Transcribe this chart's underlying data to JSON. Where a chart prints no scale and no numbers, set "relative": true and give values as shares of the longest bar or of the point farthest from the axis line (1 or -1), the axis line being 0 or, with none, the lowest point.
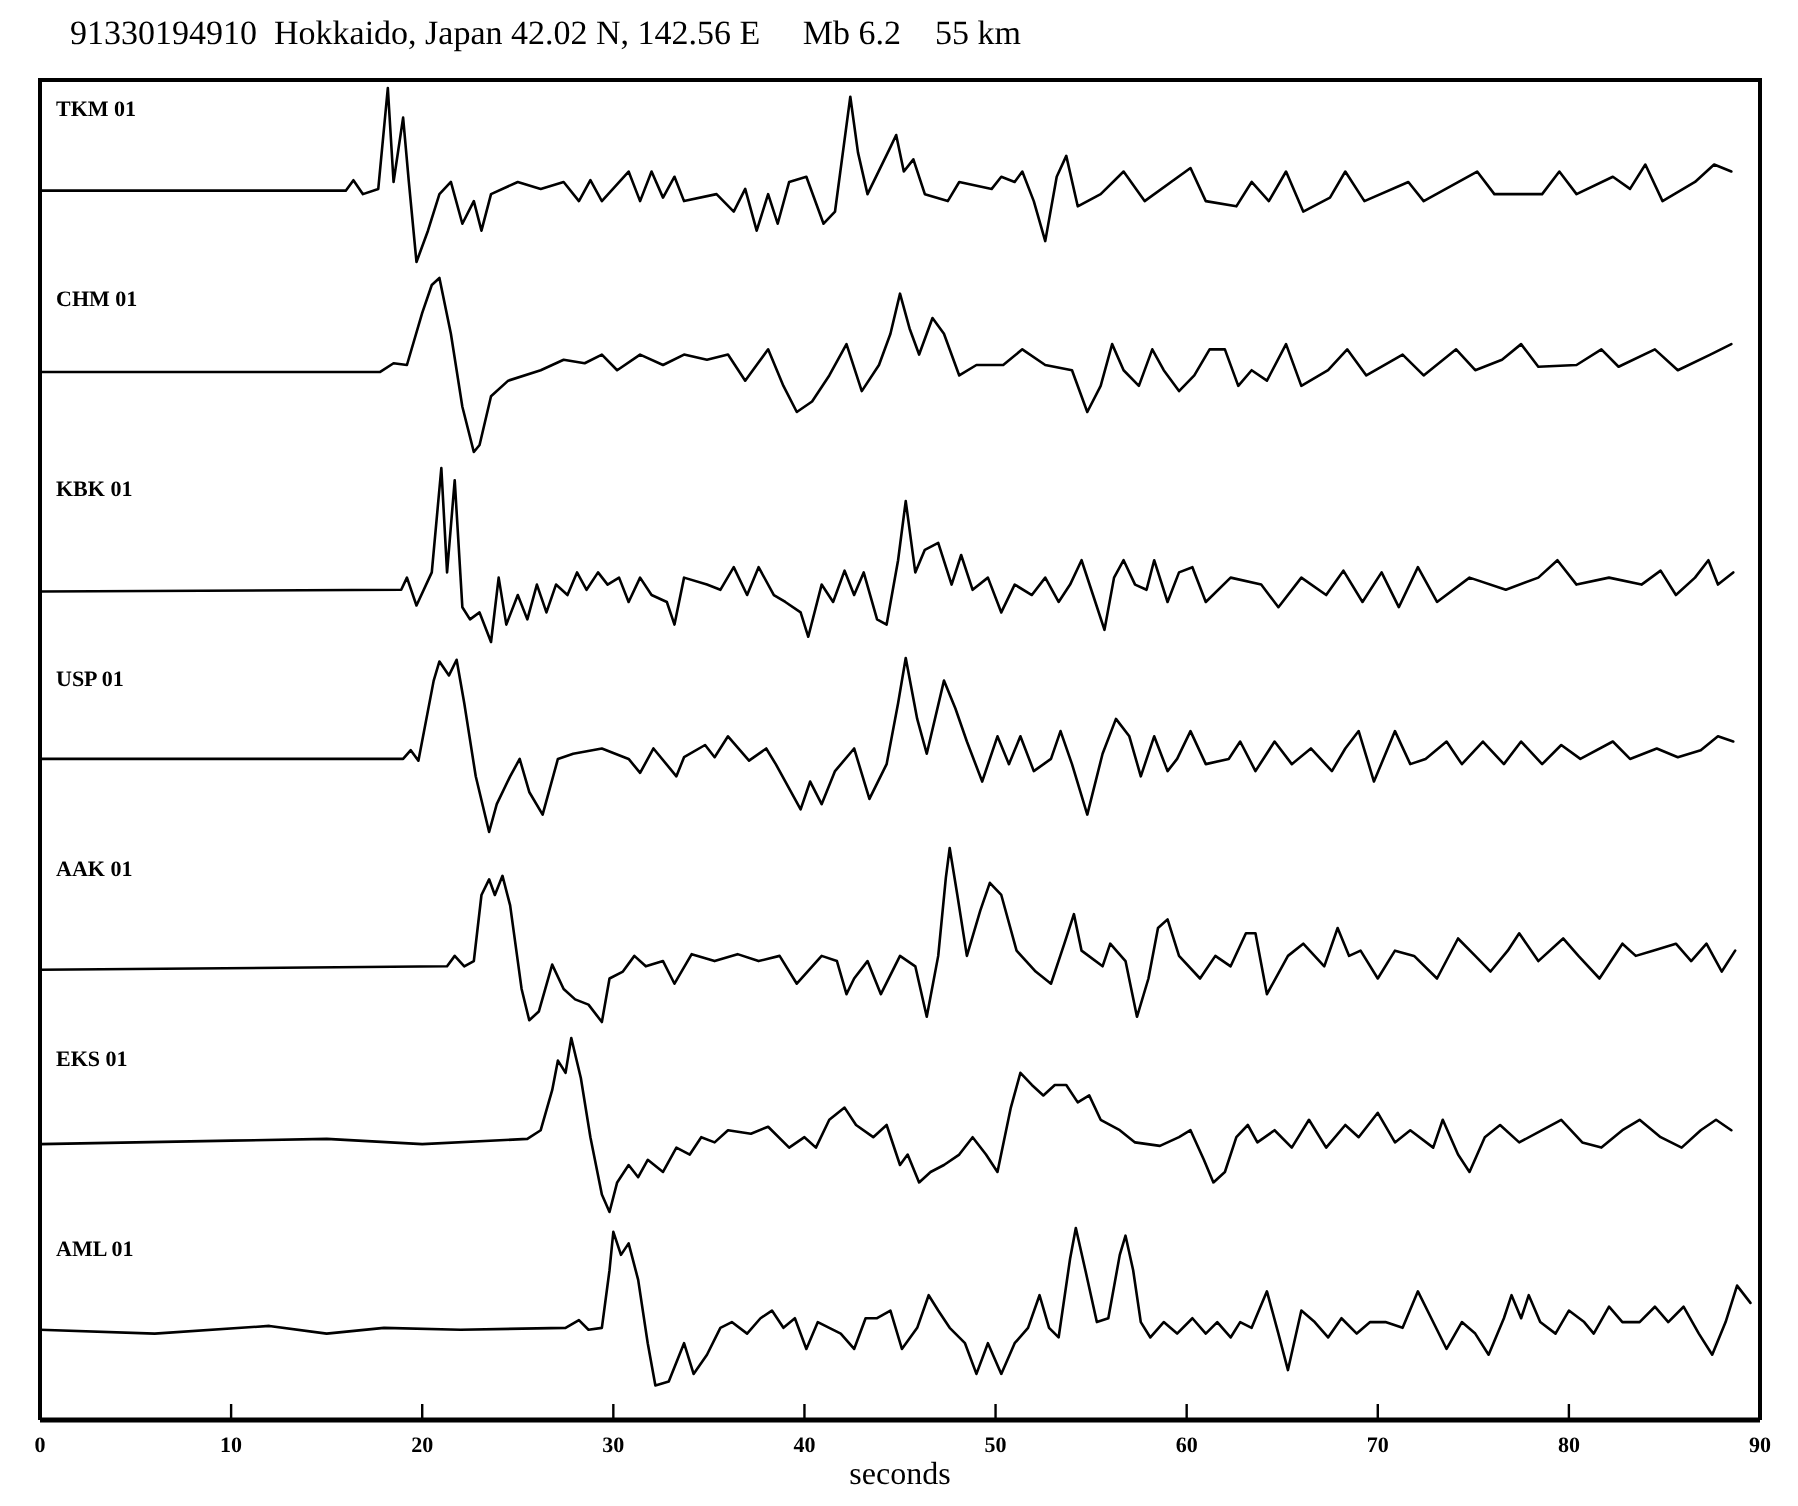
{
  "chart_data": [
    {
      "type": "line",
      "title": "91330194910  Hokkaido, Japan 42.02 N, 142.56 E     Mb 6.2    55 km",
      "relative": true,
      "xlim": [
        0,
        90
      ],
      "tick_labels": false,
      "x": [
        0,
        16.0,
        16.4,
        16.9,
        17.7,
        18.2,
        18.5,
        19.0,
        19.3,
        19.7,
        20.3,
        20.9,
        21.5,
        22.1,
        22.7,
        23.1,
        23.6,
        25.0,
        26.2,
        27.4,
        28.2,
        28.8,
        29.4,
        30.8,
        31.4,
        32.0,
        32.6,
        33.2,
        33.7,
        35.4,
        36.3,
        36.9,
        37.5,
        38.1,
        38.6,
        39.2,
        40.1,
        41.0,
        41.6,
        42.4,
        42.8,
        43.3,
        44.5,
        44.8,
        45.2,
        45.7,
        46.3,
        47.5,
        48.1,
        49.8,
        50.3,
        51.0,
        51.4,
        52.0,
        52.6,
        53.2,
        53.7,
        54.3,
        55.5,
        56.7,
        57.8,
        60.2,
        61.0,
        62.6,
        63.4,
        64.3,
        65.2,
        66.1,
        67.5,
        68.3,
        69.3,
        71.6,
        72.4,
        75.2,
        76.1,
        78.6,
        79.5,
        80.4,
        82.3,
        83.2,
        84.0,
        84.9,
        86.6,
        87.6,
        88.5
      ],
      "series": [
        {
          "name": "TKM 01",
          "color": "#000000",
          "values": [
            0.41,
            0.41,
            0.47,
            0.39,
            0.42,
            1.0,
            0.46,
            0.83,
            0.46,
            0,
            0.18,
            0.39,
            0.46,
            0.22,
            0.35,
            0.18,
            0.39,
            0.46,
            0.42,
            0.46,
            0.35,
            0.47,
            0.35,
            0.52,
            0.35,
            0.52,
            0.37,
            0.49,
            0.35,
            0.39,
            0.29,
            0.42,
            0.18,
            0.39,
            0.22,
            0.46,
            0.49,
            0.22,
            0.29,
            0.95,
            0.63,
            0.39,
            0.66,
            0.73,
            0.52,
            0.59,
            0.39,
            0.35,
            0.46,
            0.42,
            0.49,
            0.46,
            0.52,
            0.35,
            0.12,
            0.49,
            0.61,
            0.32,
            0.39,
            0.52,
            0.35,
            0.54,
            0.35,
            0.32,
            0.46,
            0.35,
            0.52,
            0.29,
            0.37,
            0.52,
            0.35,
            0.46,
            0.35,
            0.52,
            0.39,
            0.39,
            0.52,
            0.39,
            0.49,
            0.42,
            0.56,
            0.35,
            0.46,
            0.56,
            0.52
          ]
        }
      ]
    },
    {
      "type": "line",
      "relative": true,
      "xlim": [
        0,
        90
      ],
      "tick_labels": false,
      "x": [
        0,
        17.8,
        18.5,
        19.2,
        20.0,
        20.5,
        20.9,
        21.5,
        22.1,
        22.7,
        23.0,
        23.6,
        24.5,
        26.2,
        27.4,
        28.5,
        29.4,
        30.2,
        31.4,
        32.6,
        33.7,
        34.9,
        36.0,
        36.9,
        37.5,
        38.1,
        38.9,
        39.6,
        40.4,
        41.3,
        42.2,
        43.0,
        43.9,
        44.5,
        45.0,
        45.5,
        46.0,
        46.7,
        47.3,
        48.1,
        49.0,
        50.4,
        51.4,
        52.6,
        54.0,
        54.8,
        55.5,
        56.1,
        56.7,
        57.5,
        58.2,
        58.8,
        59.6,
        60.4,
        61.2,
        62.0,
        62.7,
        63.4,
        64.2,
        65.2,
        66.0,
        67.4,
        68.4,
        69.4,
        71.3,
        72.4,
        74.1,
        75.1,
        76.5,
        77.5,
        78.4,
        80.4,
        81.7,
        82.6,
        84.5,
        85.7,
        87.4,
        88.5
      ],
      "series": [
        {
          "name": "CHM 01",
          "color": "#000000",
          "values": [
            0.46,
            0.46,
            0.51,
            0.5,
            0.8,
            0.96,
            1.0,
            0.68,
            0.26,
            0,
            0.04,
            0.32,
            0.41,
            0.47,
            0.53,
            0.51,
            0.56,
            0.47,
            0.56,
            0.5,
            0.56,
            0.53,
            0.56,
            0.41,
            0.5,
            0.59,
            0.38,
            0.23,
            0.29,
            0.44,
            0.62,
            0.35,
            0.5,
            0.68,
            0.91,
            0.71,
            0.56,
            0.77,
            0.68,
            0.44,
            0.5,
            0.5,
            0.59,
            0.5,
            0.47,
            0.23,
            0.38,
            0.62,
            0.47,
            0.38,
            0.59,
            0.47,
            0.35,
            0.44,
            0.59,
            0.59,
            0.38,
            0.47,
            0.41,
            0.62,
            0.38,
            0.47,
            0.59,
            0.44,
            0.56,
            0.44,
            0.59,
            0.47,
            0.53,
            0.62,
            0.49,
            0.5,
            0.59,
            0.49,
            0.59,
            0.47,
            0.56,
            0.62
          ]
        }
      ]
    },
    {
      "type": "line",
      "relative": true,
      "xlim": [
        0,
        90
      ],
      "tick_labels": false,
      "x": [
        0,
        18.9,
        19.2,
        19.7,
        20.5,
        21.0,
        21.3,
        21.7,
        22.1,
        22.5,
        23.0,
        23.6,
        24.0,
        24.4,
        25.0,
        25.5,
        26.0,
        26.5,
        27.0,
        27.6,
        28.1,
        28.6,
        29.2,
        29.7,
        30.3,
        30.8,
        31.4,
        32.0,
        32.8,
        33.2,
        33.7,
        34.9,
        35.6,
        36.3,
        37.0,
        37.6,
        38.4,
        39.0,
        39.8,
        40.2,
        40.9,
        41.5,
        42.1,
        42.6,
        43.1,
        43.8,
        44.3,
        44.9,
        45.3,
        45.8,
        46.3,
        47.0,
        47.7,
        48.2,
        48.8,
        49.6,
        50.3,
        51.0,
        51.9,
        52.6,
        53.3,
        53.9,
        54.5,
        55.1,
        55.7,
        56.2,
        56.7,
        57.3,
        57.9,
        58.3,
        59.0,
        59.6,
        60.3,
        61.0,
        62.3,
        63.9,
        64.8,
        66.0,
        67.3,
        68.2,
        69.2,
        70.2,
        71.1,
        72.1,
        73.1,
        74.8,
        76.7,
        78.4,
        79.4,
        80.4,
        82.1,
        83.8,
        84.8,
        85.6,
        86.6,
        87.3,
        87.8,
        88.6
      ],
      "series": [
        {
          "name": "KBK 01",
          "color": "#000000",
          "values": [
            0.29,
            0.3,
            0.37,
            0.21,
            0.4,
            1.0,
            0.4,
            0.93,
            0.2,
            0.13,
            0.17,
            0,
            0.37,
            0.1,
            0.27,
            0.13,
            0.33,
            0.17,
            0.33,
            0.27,
            0.4,
            0.3,
            0.4,
            0.33,
            0.37,
            0.23,
            0.37,
            0.27,
            0.23,
            0.1,
            0.37,
            0.33,
            0.3,
            0.43,
            0.27,
            0.43,
            0.27,
            0.23,
            0.17,
            0.03,
            0.33,
            0.23,
            0.41,
            0.27,
            0.4,
            0.13,
            0.1,
            0.47,
            0.81,
            0.4,
            0.53,
            0.57,
            0.33,
            0.5,
            0.3,
            0.37,
            0.17,
            0.33,
            0.27,
            0.37,
            0.23,
            0.33,
            0.47,
            0.27,
            0.07,
            0.37,
            0.47,
            0.33,
            0.3,
            0.47,
            0.23,
            0.4,
            0.43,
            0.23,
            0.37,
            0.33,
            0.2,
            0.37,
            0.27,
            0.41,
            0.23,
            0.4,
            0.2,
            0.43,
            0.23,
            0.37,
            0.3,
            0.37,
            0.47,
            0.33,
            0.37,
            0.33,
            0.41,
            0.27,
            0.37,
            0.47,
            0.33,
            0.4
          ]
        }
      ]
    },
    {
      "type": "line",
      "relative": true,
      "xlim": [
        0,
        90
      ],
      "tick_labels": false,
      "x": [
        0,
        19.0,
        19.4,
        19.8,
        20.6,
        20.9,
        21.4,
        21.8,
        22.2,
        22.8,
        23.5,
        23.9,
        24.6,
        25.1,
        25.6,
        26.3,
        27.1,
        27.9,
        29.4,
        30.8,
        31.4,
        32.1,
        33.3,
        33.7,
        34.8,
        35.3,
        36.0,
        37.1,
        38.0,
        38.5,
        39.8,
        40.3,
        40.9,
        41.6,
        42.6,
        43.4,
        44.3,
        44.9,
        45.3,
        45.9,
        46.4,
        47.3,
        47.9,
        48.5,
        49.3,
        50.1,
        50.7,
        51.3,
        52.0,
        52.9,
        53.4,
        54.0,
        54.8,
        55.6,
        56.3,
        57.0,
        57.6,
        58.3,
        59.0,
        59.5,
        60.2,
        61.0,
        62.2,
        62.8,
        63.6,
        64.6,
        65.5,
        66.5,
        67.6,
        68.3,
        69.0,
        69.8,
        70.9,
        71.7,
        72.5,
        73.6,
        74.4,
        75.5,
        76.6,
        77.5,
        78.6,
        79.6,
        80.6,
        82.3,
        83.2,
        84.6,
        85.7,
        86.9,
        87.8,
        88.6
      ],
      "series": [
        {
          "name": "USP 01",
          "color": "#000000",
          "values": [
            0.42,
            0.42,
            0.47,
            0.41,
            0.87,
            0.98,
            0.9,
            0.99,
            0.74,
            0.32,
            0,
            0.16,
            0.32,
            0.42,
            0.23,
            0.1,
            0.42,
            0.45,
            0.48,
            0.42,
            0.34,
            0.48,
            0.32,
            0.43,
            0.5,
            0.43,
            0.55,
            0.41,
            0.48,
            0.39,
            0.13,
            0.29,
            0.16,
            0.35,
            0.48,
            0.19,
            0.39,
            0.74,
            1.0,
            0.65,
            0.45,
            0.87,
            0.71,
            0.52,
            0.29,
            0.55,
            0.39,
            0.55,
            0.35,
            0.42,
            0.58,
            0.39,
            0.1,
            0.45,
            0.65,
            0.55,
            0.32,
            0.55,
            0.35,
            0.42,
            0.58,
            0.39,
            0.42,
            0.52,
            0.35,
            0.52,
            0.39,
            0.48,
            0.35,
            0.48,
            0.58,
            0.29,
            0.58,
            0.39,
            0.42,
            0.52,
            0.39,
            0.52,
            0.39,
            0.52,
            0.39,
            0.5,
            0.42,
            0.52,
            0.42,
            0.48,
            0.43,
            0.47,
            0.55,
            0.52
          ]
        }
      ]
    },
    {
      "type": "line",
      "relative": true,
      "xlim": [
        0,
        90
      ],
      "tick_labels": false,
      "x": [
        0,
        21.3,
        21.7,
        22.2,
        22.7,
        23.1,
        23.5,
        23.8,
        24.2,
        24.6,
        25.2,
        25.6,
        26.1,
        26.8,
        27.4,
        28.0,
        28.7,
        29.4,
        29.8,
        30.5,
        31.1,
        31.7,
        32.6,
        33.2,
        34.1,
        35.3,
        36.5,
        37.6,
        38.7,
        39.6,
        40.9,
        41.7,
        42.2,
        42.6,
        43.3,
        44.0,
        45.0,
        45.8,
        46.4,
        47.0,
        47.4,
        47.6,
        48.0,
        48.5,
        49.2,
        49.7,
        50.3,
        51.1,
        52.1,
        52.9,
        53.6,
        54.1,
        54.5,
        55.6,
        56.0,
        56.8,
        57.4,
        58.0,
        58.5,
        59.0,
        59.6,
        60.7,
        61.5,
        62.3,
        63.1,
        63.6,
        64.2,
        65.3,
        66.1,
        67.2,
        67.9,
        68.5,
        69.1,
        70.0,
        70.9,
        71.9,
        73.1,
        74.2,
        75.1,
        75.9,
        76.8,
        77.4,
        78.4,
        79.7,
        80.5,
        81.6,
        82.8,
        83.5,
        84.4,
        85.6,
        86.4,
        87.2,
        88.0,
        88.7
      ],
      "series": [
        {
          "name": "AAK 01",
          "color": "#000000",
          "values": [
            0.3,
            0.32,
            0.38,
            0.32,
            0.35,
            0.73,
            0.82,
            0.73,
            0.84,
            0.67,
            0.19,
            0.01,
            0.06,
            0.33,
            0.19,
            0.13,
            0.1,
            0,
            0.25,
            0.29,
            0.38,
            0.32,
            0.35,
            0.22,
            0.39,
            0.35,
            0.39,
            0.35,
            0.38,
            0.22,
            0.38,
            0.35,
            0.16,
            0.25,
            0.35,
            0.16,
            0.38,
            0.32,
            0.03,
            0.38,
            0.83,
            1.0,
            0.73,
            0.38,
            0.64,
            0.8,
            0.73,
            0.41,
            0.29,
            0.22,
            0.45,
            0.62,
            0.41,
            0.32,
            0.45,
            0.35,
            0.03,
            0.25,
            0.54,
            0.59,
            0.38,
            0.25,
            0.38,
            0.32,
            0.51,
            0.51,
            0.16,
            0.38,
            0.45,
            0.32,
            0.54,
            0.38,
            0.41,
            0.25,
            0.41,
            0.38,
            0.25,
            0.48,
            0.38,
            0.29,
            0.41,
            0.51,
            0.35,
            0.48,
            0.38,
            0.25,
            0.45,
            0.38,
            0.41,
            0.45,
            0.35,
            0.45,
            0.29,
            0.41
          ]
        }
      ]
    },
    {
      "type": "line",
      "relative": true,
      "xlim": [
        0,
        90
      ],
      "tick_labels": false,
      "x": [
        0,
        10.0,
        15.0,
        20.0,
        25.5,
        26.2,
        26.8,
        27.1,
        27.5,
        27.8,
        28.3,
        28.8,
        29.4,
        29.8,
        30.2,
        30.8,
        31.3,
        31.8,
        32.6,
        33.3,
        34.0,
        34.6,
        35.3,
        36.0,
        37.2,
        38.1,
        39.2,
        40.0,
        40.6,
        41.3,
        42.1,
        42.7,
        43.6,
        44.3,
        45.0,
        45.4,
        46.0,
        46.6,
        47.3,
        48.1,
        48.8,
        49.5,
        50.1,
        50.8,
        51.3,
        51.9,
        52.5,
        53.1,
        53.7,
        54.3,
        54.9,
        55.5,
        56.5,
        57.3,
        58.6,
        59.6,
        60.2,
        60.9,
        61.4,
        62.0,
        62.6,
        63.2,
        63.7,
        64.6,
        65.5,
        66.4,
        67.3,
        68.3,
        69.0,
        70.0,
        70.9,
        71.7,
        72.9,
        73.4,
        74.2,
        74.8,
        75.6,
        76.4,
        77.4,
        78.6,
        79.6,
        80.7,
        81.7,
        82.8,
        83.7,
        84.8,
        85.9,
        86.9,
        87.7,
        88.5
      ],
      "series": [
        {
          "name": "EKS 01",
          "color": "#000000",
          "values": [
            0.39,
            0.41,
            0.42,
            0.39,
            0.42,
            0.47,
            0.7,
            0.87,
            0.8,
            1.0,
            0.77,
            0.43,
            0.1,
            0,
            0.17,
            0.27,
            0.2,
            0.3,
            0.23,
            0.37,
            0.33,
            0.43,
            0.4,
            0.47,
            0.45,
            0.49,
            0.37,
            0.43,
            0.37,
            0.53,
            0.6,
            0.5,
            0.43,
            0.5,
            0.27,
            0.33,
            0.17,
            0.23,
            0.27,
            0.33,
            0.43,
            0.33,
            0.23,
            0.6,
            0.8,
            0.73,
            0.67,
            0.73,
            0.73,
            0.63,
            0.67,
            0.53,
            0.47,
            0.4,
            0.38,
            0.43,
            0.47,
            0.3,
            0.17,
            0.23,
            0.43,
            0.5,
            0.4,
            0.47,
            0.37,
            0.53,
            0.37,
            0.5,
            0.43,
            0.57,
            0.4,
            0.47,
            0.37,
            0.53,
            0.33,
            0.23,
            0.43,
            0.5,
            0.4,
            0.47,
            0.53,
            0.4,
            0.37,
            0.47,
            0.53,
            0.43,
            0.37,
            0.47,
            0.53,
            0.47
          ]
        }
      ]
    },
    {
      "type": "line",
      "relative": true,
      "xlim": [
        0,
        90
      ],
      "xticks": [
        0,
        10,
        20,
        30,
        40,
        50,
        60,
        70,
        80,
        90
      ],
      "tick_labels": "x",
      "xlabel": "seconds",
      "x": [
        0,
        6.0,
        12.0,
        15.0,
        18.0,
        22.0,
        27.5,
        28.2,
        28.7,
        29.4,
        29.8,
        30.0,
        30.4,
        30.8,
        31.3,
        31.8,
        32.2,
        32.9,
        33.7,
        34.2,
        34.9,
        35.6,
        36.2,
        37.0,
        37.7,
        38.3,
        38.9,
        39.5,
        40.1,
        40.7,
        41.3,
        41.9,
        42.6,
        43.2,
        43.8,
        44.5,
        45.1,
        45.9,
        46.5,
        47.0,
        47.6,
        48.4,
        49.0,
        49.6,
        50.3,
        51.0,
        51.7,
        52.3,
        52.8,
        53.3,
        53.9,
        54.2,
        54.7,
        55.3,
        55.9,
        56.5,
        56.8,
        57.2,
        57.6,
        58.1,
        58.8,
        59.5,
        60.3,
        61.0,
        61.6,
        62.3,
        62.8,
        63.4,
        64.2,
        64.8,
        65.3,
        66.0,
        66.7,
        67.4,
        68.1,
        68.9,
        69.6,
        70.4,
        71.3,
        72.1,
        72.8,
        73.6,
        74.4,
        75.1,
        75.8,
        76.6,
        77.0,
        77.5,
        77.9,
        78.5,
        79.3,
        80.0,
        80.8,
        81.3,
        82.1,
        82.8,
        83.7,
        84.5,
        85.2,
        86.0,
        86.8,
        87.5,
        88.2,
        88.8,
        89.5
      ],
      "series": [
        {
          "name": "AML 01",
          "color": "#000000",
          "values": [
            0.47,
            0.45,
            0.49,
            0.45,
            0.48,
            0.47,
            0.48,
            0.52,
            0.47,
            0.48,
            0.78,
            0.98,
            0.86,
            0.92,
            0.73,
            0.4,
            0.18,
            0.2,
            0.4,
            0.24,
            0.34,
            0.48,
            0.51,
            0.45,
            0.53,
            0.57,
            0.48,
            0.53,
            0.37,
            0.51,
            0.48,
            0.45,
            0.37,
            0.53,
            0.53,
            0.57,
            0.37,
            0.48,
            0.65,
            0.57,
            0.48,
            0.4,
            0.24,
            0.4,
            0.24,
            0.4,
            0.48,
            0.65,
            0.48,
            0.43,
            0.84,
            1.0,
            0.78,
            0.51,
            0.53,
            0.86,
            0.96,
            0.78,
            0.51,
            0.43,
            0.51,
            0.45,
            0.53,
            0.45,
            0.51,
            0.43,
            0.51,
            0.48,
            0.67,
            0.45,
            0.26,
            0.57,
            0.51,
            0.43,
            0.53,
            0.45,
            0.51,
            0.51,
            0.48,
            0.67,
            0.53,
            0.37,
            0.51,
            0.45,
            0.34,
            0.53,
            0.65,
            0.53,
            0.65,
            0.51,
            0.45,
            0.57,
            0.51,
            0.45,
            0.59,
            0.51,
            0.51,
            0.59,
            0.51,
            0.59,
            0.45,
            0.34,
            0.51,
            0.7,
            0.61
          ]
        }
      ]
    }
  ]
}
